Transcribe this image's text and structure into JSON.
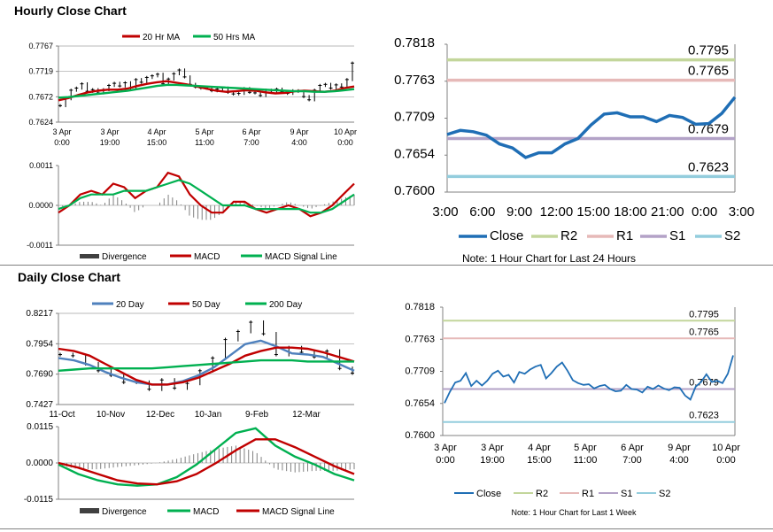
{
  "sections": {
    "hourly_title": "Hourly Close Chart",
    "daily_title": "Daily Close Chart"
  },
  "colors": {
    "ma_short": "#c00000",
    "ma_long": "#00b050",
    "blue": "#4f81bd",
    "dark_blue": "#1f6eb5",
    "r2": "#c3d69b",
    "r1": "#e6b9b8",
    "s1": "#b3a2c7",
    "s2": "#93cddd",
    "divergence": "#808080"
  },
  "chart_data": [
    {
      "id": "hourly-price",
      "type": "line",
      "ylim": [
        0.7624,
        0.7767
      ],
      "yticks": [
        "0.7767",
        "0.7719",
        "0.7672",
        "0.7624"
      ],
      "xticks": [
        [
          "3 Apr",
          "0:00"
        ],
        [
          "3 Apr",
          "19:00"
        ],
        [
          "4 Apr",
          "15:00"
        ],
        [
          "5 Apr",
          "11:00"
        ],
        [
          "6 Apr",
          "7:00"
        ],
        [
          "9 Apr",
          "4:00"
        ],
        [
          "10 Apr",
          "0:00"
        ]
      ],
      "legend": [
        "20 Hr MA",
        "50 Hrs MA"
      ],
      "series": [
        {
          "name": "20 Hr MA",
          "color": "#c00000",
          "values": [
            0.7665,
            0.7669,
            0.7675,
            0.768,
            0.7683,
            0.7685,
            0.7685,
            0.7687,
            0.7692,
            0.7696,
            0.7699,
            0.7701,
            0.7698,
            0.7695,
            0.7691,
            0.7687,
            0.7683,
            0.7681,
            0.7682,
            0.7684,
            0.7683,
            0.768,
            0.7678,
            0.7679,
            0.7682,
            0.7683,
            0.7682,
            0.7681,
            0.7683,
            0.7688,
            0.7691
          ]
        },
        {
          "name": "50 Hrs MA",
          "color": "#00b050",
          "values": [
            0.767,
            0.7671,
            0.7673,
            0.7675,
            0.7677,
            0.7679,
            0.7681,
            0.7683,
            0.7686,
            0.7689,
            0.7692,
            0.7694,
            0.7694,
            0.7693,
            0.7692,
            0.7691,
            0.769,
            0.7689,
            0.7688,
            0.7687,
            0.7686,
            0.7685,
            0.7684,
            0.7683,
            0.7682,
            0.7682,
            0.7681,
            0.7681,
            0.7682,
            0.7684,
            0.7686
          ]
        }
      ],
      "price": [
        0.7655,
        0.7668,
        0.7684,
        0.7688,
        0.7696,
        0.7682,
        0.7685,
        0.7679,
        0.7685,
        0.7693,
        0.7697,
        0.7692,
        0.7698,
        0.7688,
        0.7704,
        0.7699,
        0.7708,
        0.7711,
        0.7714,
        0.7696,
        0.7705,
        0.7715,
        0.7722,
        0.7709,
        0.7695,
        0.769,
        0.7688,
        0.7688,
        0.7683,
        0.7686,
        0.7688,
        0.768,
        0.7677,
        0.7678,
        0.7687,
        0.768,
        0.7679,
        0.7674,
        0.7684,
        0.768,
        0.7686,
        0.7681,
        0.7678,
        0.7683,
        0.7682,
        0.7672,
        0.7666,
        0.7684,
        0.7693,
        0.7695,
        0.7688,
        0.7694,
        0.769,
        0.7704,
        0.7735
      ]
    },
    {
      "id": "hourly-macd",
      "type": "line",
      "ylim": [
        -0.0011,
        0.0011
      ],
      "yticks": [
        "0.0011",
        "0.0000",
        "-0.0011"
      ],
      "legend": [
        "Divergence",
        "MACD",
        "MACD Signal Line"
      ],
      "series": [
        {
          "name": "MACD",
          "color": "#c00000",
          "values": [
            -0.0002,
            0.0,
            0.0003,
            0.0004,
            0.0003,
            0.0006,
            0.0005,
            0.0002,
            0.0004,
            0.0005,
            0.0009,
            0.0008,
            0.0003,
            0.0,
            -0.0002,
            -0.0002,
            0.0001,
            0.0001,
            -0.0001,
            -0.0002,
            -0.0001,
            0.0,
            -0.0001,
            -0.0003,
            -0.0002,
            0.0,
            0.0003,
            0.0006
          ]
        },
        {
          "name": "MACD Signal Line",
          "color": "#00b050",
          "values": [
            -0.0001,
            0.0,
            0.0002,
            0.0003,
            0.0003,
            0.0003,
            0.0004,
            0.0004,
            0.0004,
            0.0005,
            0.0006,
            0.0007,
            0.0006,
            0.0004,
            0.0002,
            0.0,
            0.0,
            0.0,
            -0.0001,
            -0.0001,
            -0.0001,
            -0.0001,
            -0.0001,
            -0.0002,
            -0.0002,
            -0.0001,
            0.0001,
            0.0003
          ]
        }
      ]
    },
    {
      "id": "hourly-levels",
      "type": "line",
      "ylim": [
        0.76,
        0.7818
      ],
      "yticks": [
        "0.7818",
        "0.7763",
        "0.7709",
        "0.7654",
        "0.7600"
      ],
      "xticks": [
        "3:00",
        "6:00",
        "9:00",
        "12:00",
        "15:00",
        "18:00",
        "21:00",
        "0:00",
        "3:00"
      ],
      "levels": [
        {
          "name": "R2",
          "value": 0.7795,
          "label": "0.7795",
          "color": "#c3d69b"
        },
        {
          "name": "R1",
          "value": 0.7765,
          "label": "0.7765",
          "color": "#e6b9b8"
        },
        {
          "name": "S1",
          "value": 0.7679,
          "label": "0.7679",
          "color": "#b3a2c7"
        },
        {
          "name": "S2",
          "value": 0.7623,
          "label": "0.7623",
          "color": "#93cddd"
        }
      ],
      "close": [
        0.7685,
        0.7691,
        0.7689,
        0.7684,
        0.7671,
        0.7665,
        0.7651,
        0.7658,
        0.7658,
        0.7671,
        0.7679,
        0.7699,
        0.7715,
        0.7717,
        0.7711,
        0.7711,
        0.7704,
        0.7713,
        0.771,
        0.77,
        0.7701,
        0.7716,
        0.774
      ],
      "legend": [
        "Close",
        "R2",
        "R1",
        "S1",
        "S2"
      ],
      "note": "Note: 1 Hour Chart for Last 24 Hours"
    },
    {
      "id": "daily-price",
      "type": "line",
      "ylim": [
        0.7427,
        0.8217
      ],
      "yticks": [
        "0.8217",
        "0.7954",
        "0.7690",
        "0.7427"
      ],
      "xticks": [
        "11-Oct",
        "10-Nov",
        "12-Dec",
        "10-Jan",
        "9-Feb",
        "12-Mar"
      ],
      "legend": [
        "20 Day",
        "50 Day",
        "200 Day"
      ],
      "series": [
        {
          "name": "20 Day",
          "color": "#4f81bd",
          "values": [
            0.783,
            0.781,
            0.777,
            0.771,
            0.766,
            0.762,
            0.76,
            0.76,
            0.763,
            0.768,
            0.775,
            0.785,
            0.795,
            0.798,
            0.793,
            0.787,
            0.786,
            0.784,
            0.778,
            0.772
          ]
        },
        {
          "name": "50 Day",
          "color": "#c00000",
          "values": [
            0.791,
            0.789,
            0.785,
            0.778,
            0.771,
            0.764,
            0.76,
            0.76,
            0.762,
            0.766,
            0.772,
            0.778,
            0.785,
            0.789,
            0.792,
            0.792,
            0.791,
            0.788,
            0.784,
            0.78
          ]
        },
        {
          "name": "200 Day",
          "color": "#00b050",
          "values": [
            0.772,
            0.773,
            0.774,
            0.774,
            0.774,
            0.774,
            0.774,
            0.775,
            0.776,
            0.777,
            0.778,
            0.779,
            0.78,
            0.781,
            0.781,
            0.781,
            0.78,
            0.78,
            0.78,
            0.78
          ]
        }
      ],
      "price": [
        0.786,
        0.785,
        0.778,
        0.772,
        0.768,
        0.762,
        0.762,
        0.756,
        0.764,
        0.757,
        0.761,
        0.772,
        0.783,
        0.799,
        0.806,
        0.814,
        0.804,
        0.786,
        0.792,
        0.788,
        0.784,
        0.789,
        0.774,
        0.77
      ]
    },
    {
      "id": "daily-macd",
      "type": "line",
      "ylim": [
        -0.0115,
        0.0115
      ],
      "yticks": [
        "0.0115",
        "0.0000",
        "-0.0115"
      ],
      "legend": [
        "Divergence",
        "MACD",
        "MACD Signal Line"
      ],
      "series": [
        {
          "name": "MACD",
          "color": "#00b050",
          "values": [
            -0.0005,
            -0.0035,
            -0.0055,
            -0.0068,
            -0.0072,
            -0.0068,
            -0.0045,
            -0.0005,
            0.0045,
            0.0095,
            0.011,
            0.0055,
            0.002,
            -0.0005,
            -0.0035,
            -0.0055
          ]
        },
        {
          "name": "MACD Signal Line",
          "color": "#c00000",
          "values": [
            0.0,
            -0.0015,
            -0.0035,
            -0.0055,
            -0.0065,
            -0.0068,
            -0.0058,
            -0.0035,
            0.0,
            0.004,
            0.0075,
            0.0075,
            0.005,
            0.002,
            -0.001,
            -0.0035
          ]
        }
      ]
    },
    {
      "id": "weekly-levels",
      "type": "line",
      "ylim": [
        0.76,
        0.7818
      ],
      "yticks": [
        "0.7818",
        "0.7763",
        "0.7709",
        "0.7654",
        "0.7600"
      ],
      "xticks": [
        [
          "3 Apr",
          "0:00"
        ],
        [
          "3 Apr",
          "19:00"
        ],
        [
          "4 Apr",
          "15:00"
        ],
        [
          "5 Apr",
          "11:00"
        ],
        [
          "6 Apr",
          "7:00"
        ],
        [
          "9 Apr",
          "4:00"
        ],
        [
          "10 Apr",
          "0:00"
        ]
      ],
      "levels": [
        {
          "name": "R2",
          "value": 0.7795,
          "label": "0.7795",
          "color": "#c3d69b"
        },
        {
          "name": "R1",
          "value": 0.7765,
          "label": "0.7765",
          "color": "#e6b9b8"
        },
        {
          "name": "S1",
          "value": 0.7679,
          "label": "0.7679",
          "color": "#b3a2c7"
        },
        {
          "name": "S2",
          "value": 0.7623,
          "label": "0.7623",
          "color": "#93cddd"
        }
      ],
      "close": [
        0.7655,
        0.7674,
        0.769,
        0.7693,
        0.7706,
        0.7684,
        0.7693,
        0.7685,
        0.7693,
        0.7705,
        0.771,
        0.77,
        0.7703,
        0.769,
        0.7708,
        0.7705,
        0.7712,
        0.7717,
        0.772,
        0.7697,
        0.7706,
        0.7717,
        0.7724,
        0.771,
        0.7694,
        0.7689,
        0.7686,
        0.7687,
        0.768,
        0.7684,
        0.7686,
        0.7679,
        0.7675,
        0.7676,
        0.7686,
        0.7679,
        0.7678,
        0.7673,
        0.7683,
        0.7679,
        0.7685,
        0.768,
        0.7677,
        0.7682,
        0.7681,
        0.7668,
        0.7661,
        0.7683,
        0.7691,
        0.7704,
        0.7691,
        0.7693,
        0.7689,
        0.7705,
        0.7736
      ],
      "legend": [
        "Close",
        "R2",
        "R1",
        "S1",
        "S2"
      ],
      "note": "Note: 1 Hour Chart for Last 1 Week"
    }
  ]
}
